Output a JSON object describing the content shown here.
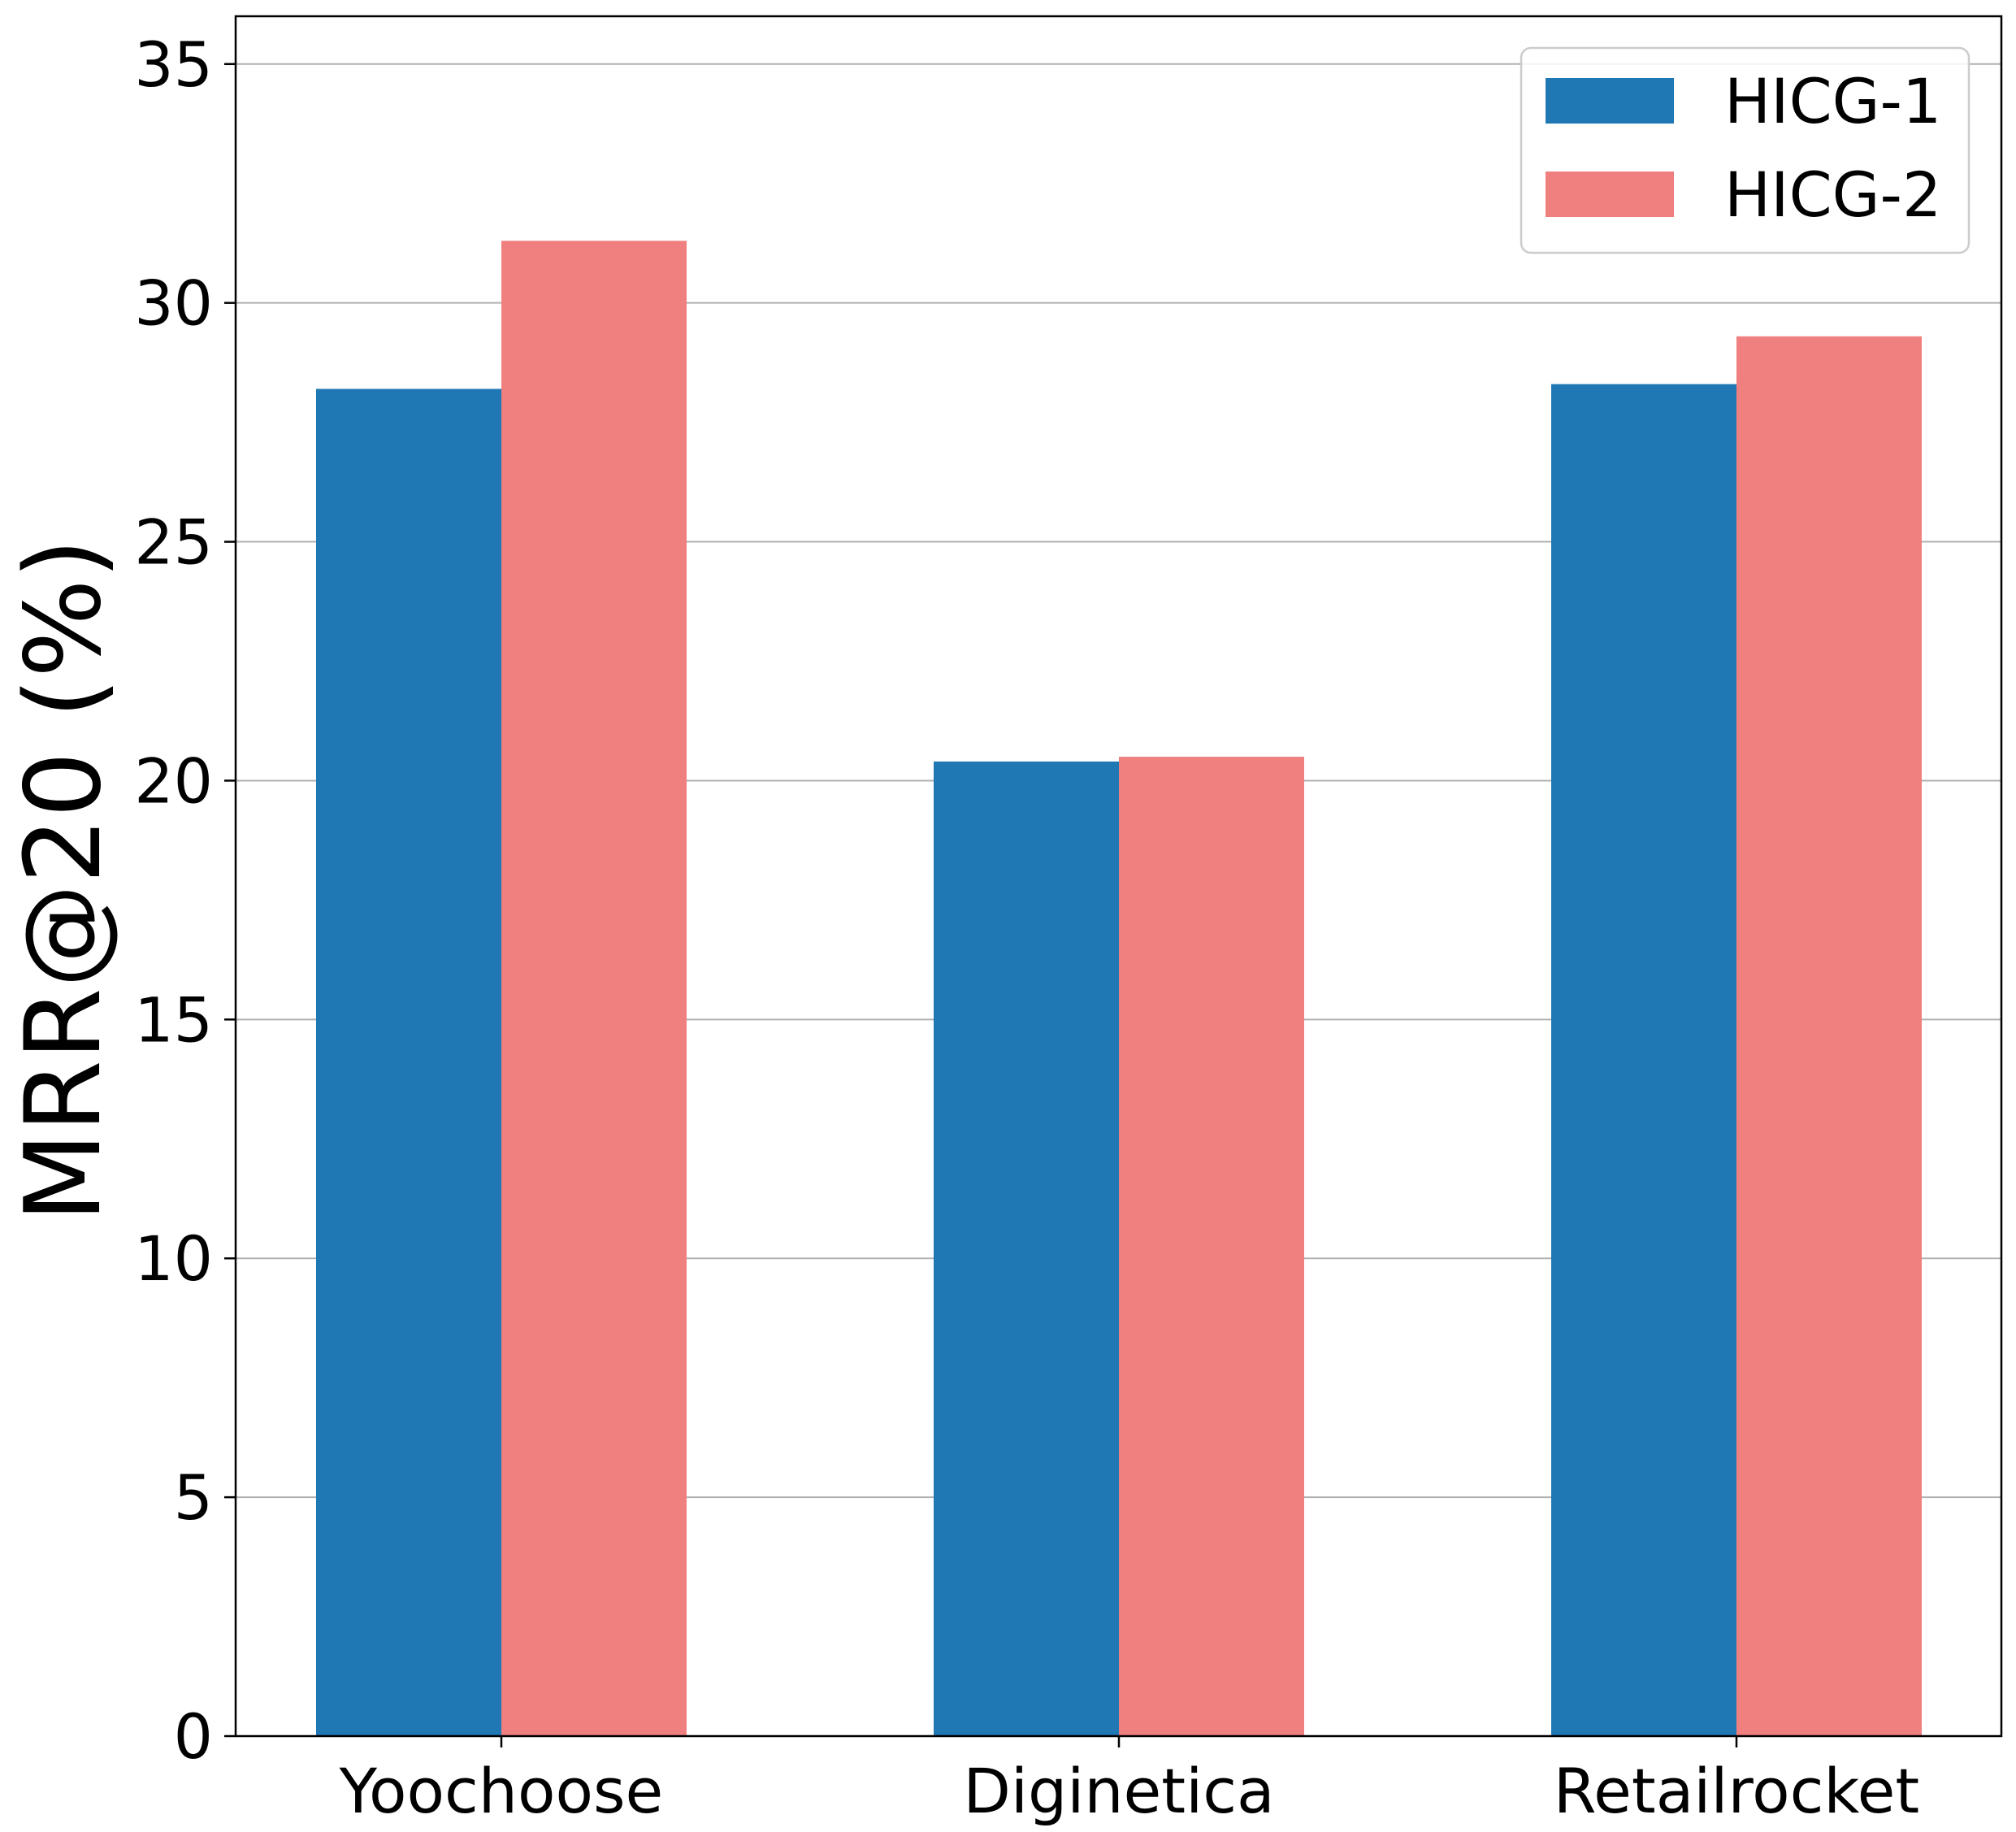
{
  "chart_data": {
    "type": "bar",
    "title": "",
    "xlabel": "",
    "ylabel": "MRR@20 (%)",
    "categories": [
      "Yoochoose",
      "Diginetica",
      "Retailrocket"
    ],
    "series": [
      {
        "name": "HICG-1",
        "color": "#1f77b4",
        "values": [
          28.2,
          20.4,
          28.3
        ]
      },
      {
        "name": "HICG-2",
        "color": "#f08080",
        "values": [
          31.3,
          20.5,
          29.3
        ]
      }
    ],
    "ylim": [
      0,
      36
    ],
    "yticks": [
      "0",
      "5",
      "10",
      "15",
      "20",
      "25",
      "30",
      "35"
    ],
    "ytick_values": [
      0,
      5,
      10,
      15,
      20,
      25,
      30,
      35
    ],
    "grid": "horizontal",
    "legend_position": "top-right"
  }
}
